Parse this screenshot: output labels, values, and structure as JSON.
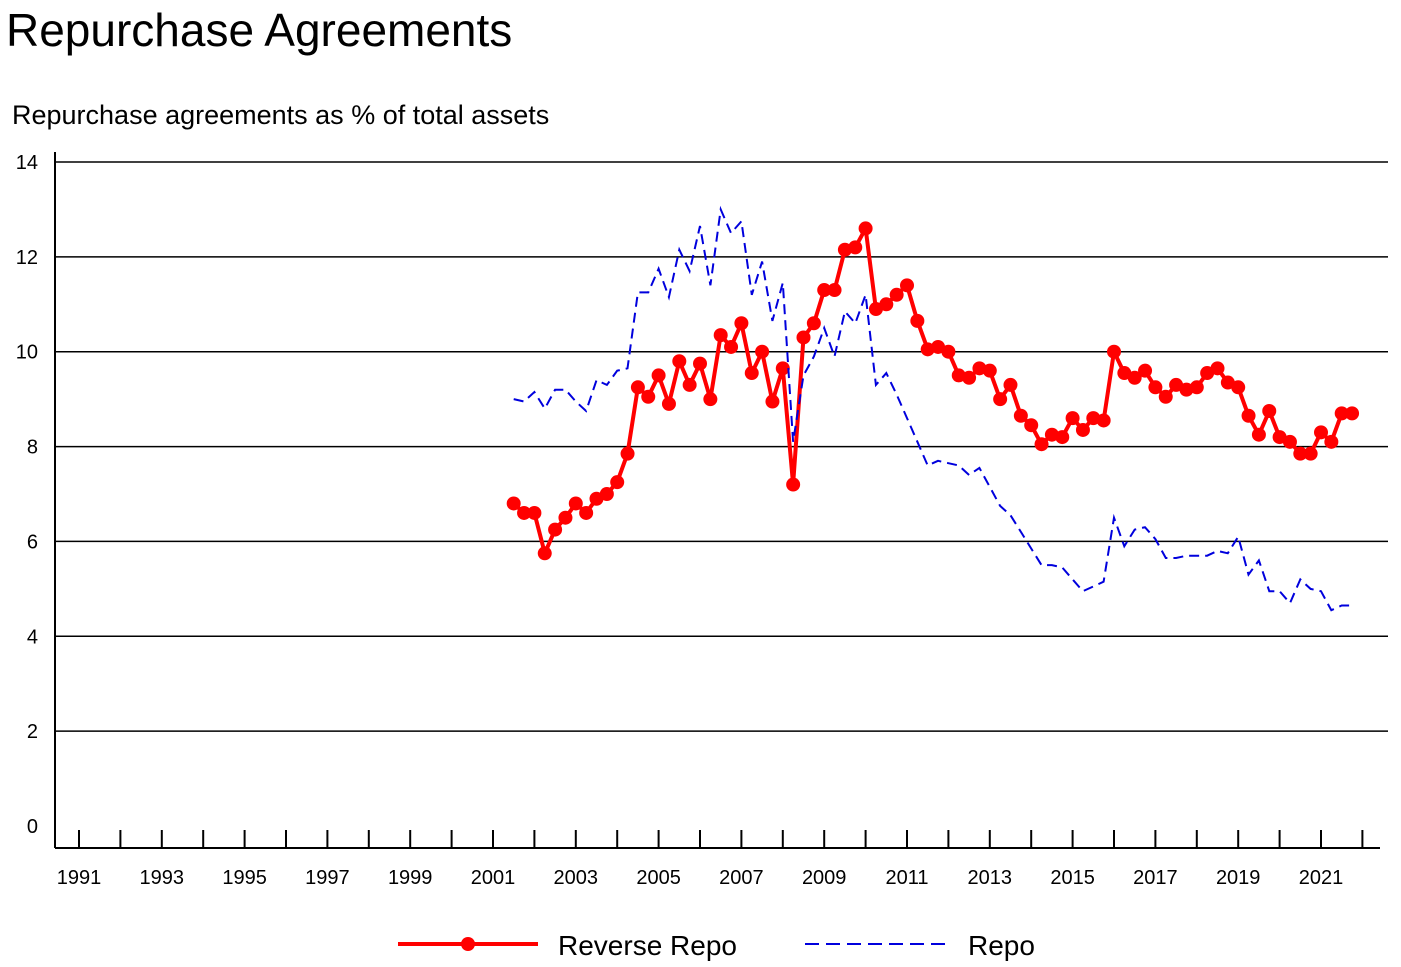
{
  "title": "Repurchase Agreements",
  "subtitle": "Repurchase agreements as % of total assets",
  "chart_data": {
    "type": "line",
    "title": "Repurchase Agreements",
    "ylabel": "Repurchase agreements as % of total assets",
    "xlabel": "",
    "xlim": [
      1990,
      2022
    ],
    "ylim": [
      0,
      14
    ],
    "y_ticks": [
      "0",
      "2",
      "4",
      "6",
      "8",
      "10",
      "12",
      "14"
    ],
    "x_tick_labels": [
      "1991",
      "1993",
      "1995",
      "1997",
      "1999",
      "2001",
      "2003",
      "2005",
      "2007",
      "2009",
      "2011",
      "2013",
      "2015",
      "2017",
      "2019",
      "2021"
    ],
    "grid": "horizontal",
    "legend_position": "bottom",
    "series": [
      {
        "name": "Reverse Repo",
        "color": "#ff0000",
        "style": "solid-with-markers",
        "x": [
          2001.5,
          2001.75,
          2002.0,
          2002.25,
          2002.5,
          2002.75,
          2003.0,
          2003.25,
          2003.5,
          2003.75,
          2004.0,
          2004.25,
          2004.5,
          2004.75,
          2005.0,
          2005.25,
          2005.5,
          2005.75,
          2006.0,
          2006.25,
          2006.5,
          2006.75,
          2007.0,
          2007.25,
          2007.5,
          2007.75,
          2008.0,
          2008.25,
          2008.5,
          2008.75,
          2009.0,
          2009.25,
          2009.5,
          2009.75,
          2010.0,
          2010.25,
          2010.5,
          2010.75,
          2011.0,
          2011.25,
          2011.5,
          2011.75,
          2012.0,
          2012.25,
          2012.5,
          2012.75,
          2013.0,
          2013.25,
          2013.5,
          2013.75,
          2014.0,
          2014.25,
          2014.5,
          2014.75,
          2015.0,
          2015.25,
          2015.5,
          2015.75,
          2016.0,
          2016.25,
          2016.5,
          2016.75,
          2017.0,
          2017.25,
          2017.5,
          2017.75,
          2018.0,
          2018.25,
          2018.5,
          2018.75,
          2019.0,
          2019.25,
          2019.5,
          2019.75,
          2020.0,
          2020.25,
          2020.5,
          2020.75,
          2021.0,
          2021.25,
          2021.5,
          2021.75
        ],
        "y": [
          6.8,
          6.6,
          6.6,
          5.75,
          6.25,
          6.5,
          6.8,
          6.6,
          6.9,
          7.0,
          7.25,
          7.85,
          9.25,
          9.05,
          9.5,
          8.9,
          9.8,
          9.3,
          9.75,
          9.0,
          10.35,
          10.1,
          10.6,
          9.55,
          10.0,
          8.95,
          9.65,
          7.2,
          10.3,
          10.6,
          11.3,
          11.3,
          12.15,
          12.2,
          12.6,
          10.9,
          11.0,
          11.2,
          11.4,
          10.65,
          10.05,
          10.1,
          10.0,
          9.5,
          9.45,
          9.65,
          9.6,
          9.0,
          9.3,
          8.65,
          8.45,
          8.05,
          8.25,
          8.2,
          8.6,
          8.35,
          8.6,
          8.55,
          10.0,
          9.55,
          9.45,
          9.6,
          9.25,
          9.05,
          9.3,
          9.2,
          9.25,
          9.55,
          9.65,
          9.35,
          9.25,
          8.65,
          8.25,
          8.75,
          8.2,
          8.1,
          7.85,
          7.85,
          8.3,
          8.1,
          8.7,
          8.7
        ]
      },
      {
        "name": "Repo",
        "color": "#0000dd",
        "style": "dashed",
        "x": [
          2001.5,
          2001.75,
          2002.0,
          2002.25,
          2002.5,
          2002.75,
          2003.0,
          2003.25,
          2003.5,
          2003.75,
          2004.0,
          2004.25,
          2004.5,
          2004.75,
          2005.0,
          2005.25,
          2005.5,
          2005.75,
          2006.0,
          2006.25,
          2006.5,
          2006.75,
          2007.0,
          2007.25,
          2007.5,
          2007.75,
          2008.0,
          2008.25,
          2008.5,
          2008.75,
          2009.0,
          2009.25,
          2009.5,
          2009.75,
          2010.0,
          2010.25,
          2010.5,
          2010.75,
          2011.0,
          2011.25,
          2011.5,
          2011.75,
          2012.0,
          2012.25,
          2012.5,
          2012.75,
          2013.0,
          2013.25,
          2013.5,
          2013.75,
          2014.0,
          2014.25,
          2014.5,
          2014.75,
          2015.0,
          2015.25,
          2015.5,
          2015.75,
          2016.0,
          2016.25,
          2016.5,
          2016.75,
          2017.0,
          2017.25,
          2017.5,
          2017.75,
          2018.0,
          2018.25,
          2018.5,
          2018.75,
          2019.0,
          2019.25,
          2019.5,
          2019.75,
          2020.0,
          2020.25,
          2020.5,
          2020.75,
          2021.0,
          2021.25,
          2021.5,
          2021.75
        ],
        "y": [
          9.0,
          8.95,
          9.15,
          8.8,
          9.2,
          9.2,
          8.95,
          8.75,
          9.4,
          9.3,
          9.6,
          9.65,
          11.25,
          11.25,
          11.75,
          11.15,
          12.15,
          11.7,
          12.65,
          11.4,
          13.0,
          12.5,
          12.75,
          11.2,
          11.9,
          10.65,
          11.45,
          8.1,
          9.5,
          9.9,
          10.5,
          9.9,
          10.85,
          10.6,
          11.2,
          9.3,
          9.55,
          9.1,
          8.6,
          8.1,
          7.6,
          7.7,
          7.65,
          7.6,
          7.4,
          7.55,
          7.15,
          6.75,
          6.55,
          6.2,
          5.85,
          5.5,
          5.5,
          5.45,
          5.2,
          4.95,
          5.05,
          5.15,
          6.5,
          5.9,
          6.25,
          6.3,
          6.05,
          5.65,
          5.65,
          5.7,
          5.7,
          5.7,
          5.8,
          5.75,
          6.1,
          5.3,
          5.6,
          4.95,
          4.95,
          4.7,
          5.2,
          5.0,
          4.95,
          4.55,
          4.65,
          4.65
        ]
      }
    ]
  }
}
